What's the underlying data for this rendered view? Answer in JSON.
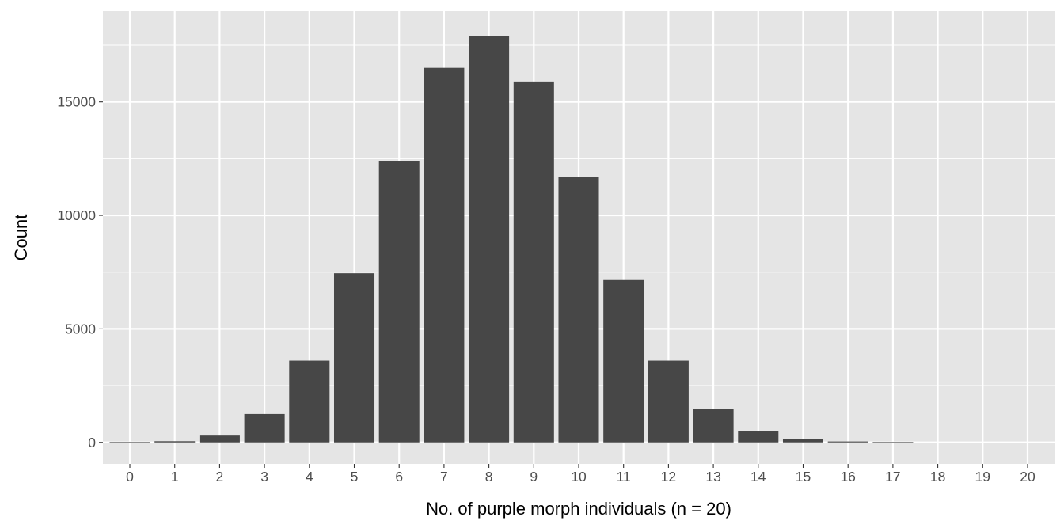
{
  "chart_data": {
    "type": "bar",
    "title": "",
    "xlabel": "No. of purple morph individuals (n = 20)",
    "ylabel": "Count",
    "categories": [
      "0",
      "1",
      "2",
      "3",
      "4",
      "5",
      "6",
      "7",
      "8",
      "9",
      "10",
      "11",
      "12",
      "13",
      "14",
      "15",
      "16",
      "17",
      "18",
      "19",
      "20"
    ],
    "values": [
      5,
      50,
      300,
      1250,
      3600,
      7450,
      12400,
      16500,
      17900,
      15900,
      11700,
      7150,
      3600,
      1480,
      500,
      150,
      40,
      8,
      0,
      0,
      0
    ],
    "y_ticks": [
      0,
      5000,
      10000,
      15000
    ],
    "ylim": [
      -950,
      19000
    ],
    "grid": true,
    "legend": "none",
    "colors": {
      "panel_background": "#e5e5e5",
      "grid": "#ffffff",
      "bar_fill": "#474747",
      "tick_label": "#4d4d4d",
      "tick_mark": "#333333",
      "axis_title": "#000000"
    }
  }
}
